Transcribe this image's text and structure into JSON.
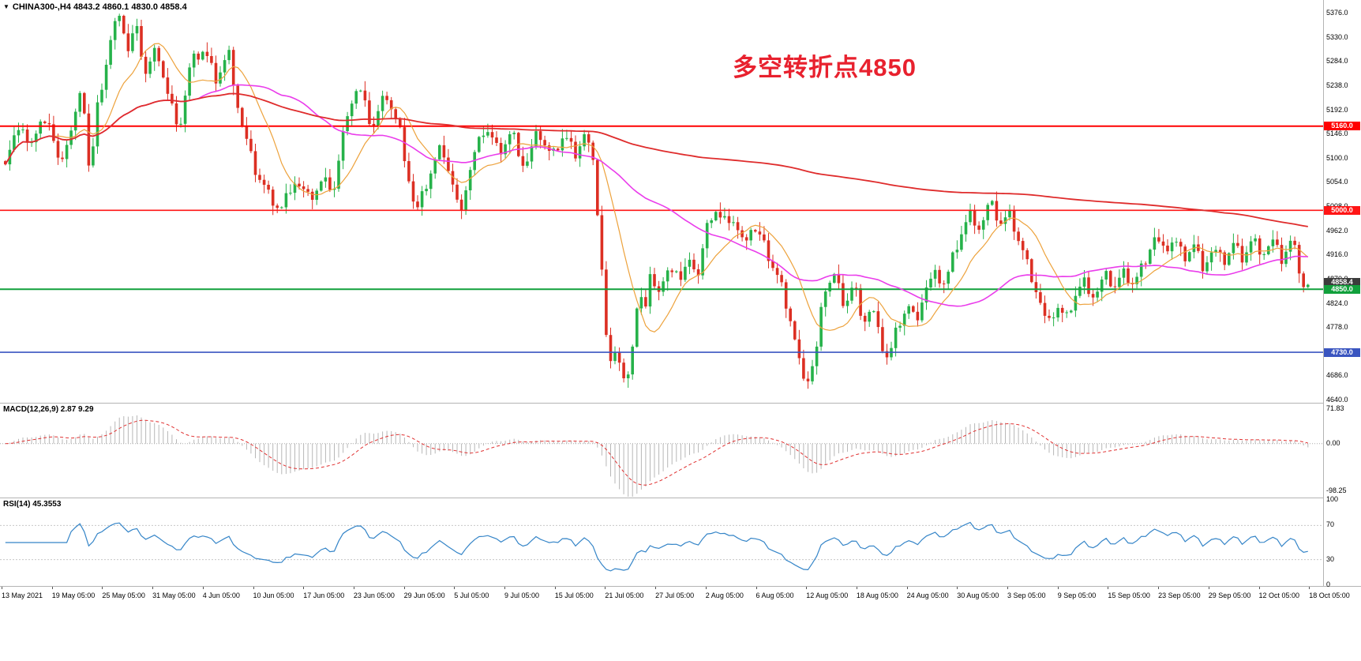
{
  "header": {
    "icon": "▼",
    "text": "CHINA300-,H4 4843.2 4860.1 4830.0 4858.4"
  },
  "annotation": {
    "text": "多空转折点4850",
    "color": "#e8212e"
  },
  "chart_data": {
    "type": "candlestick",
    "symbol": "CHINA300-",
    "timeframe": "H4",
    "ohlc_display": {
      "open": 4843.2,
      "high": 4860.1,
      "low": 4830.0,
      "close": 4858.4
    },
    "bar_count": 298,
    "price_pane": {
      "ylim": [
        4634,
        5400
      ],
      "axis_ticks": [
        "5376.0",
        "5330.0",
        "5284.0",
        "5238.0",
        "5192.0",
        "5146.0",
        "5100.0",
        "5054.0",
        "5008.0",
        "4962.0",
        "4916.0",
        "4870.0",
        "4824.0",
        "4778.0",
        "4686.0",
        "4640.0"
      ],
      "axis_tick_values": [
        5376,
        5330,
        5284,
        5238,
        5192,
        5146,
        5100,
        5054,
        5008,
        4962,
        4916,
        4870,
        4824,
        4778,
        4686,
        4640
      ],
      "up_color": "#26b24a",
      "down_color": "#dc2f23",
      "hlines": [
        {
          "value": 5160.0,
          "label": "5160.0",
          "color": "#ff0000",
          "width": 2
        },
        {
          "value": 5000.0,
          "label": "5000.0",
          "color": "#ff1515",
          "width": 1.6
        },
        {
          "value": 4850.0,
          "label": "4850.0",
          "color": "#11a03c",
          "width": 2
        },
        {
          "value": 4730.0,
          "label": "4730.0",
          "color": "#3a55c0",
          "width": 1.6
        }
      ],
      "current_price": {
        "value": 4858.4,
        "label": "4858.4",
        "color": "#3c3c3c"
      },
      "moving_averages": [
        {
          "name": "ma-fast",
          "period": 12,
          "color": "#eda23c",
          "width": 1.2
        },
        {
          "name": "ma-medium",
          "period": 45,
          "color": "#ea3deb",
          "width": 1.6
        },
        {
          "name": "ma-slow",
          "period": 260,
          "color": "#df2c2c",
          "width": 1.8
        }
      ],
      "price_path_anchors": [
        [
          0,
          5080
        ],
        [
          18,
          5150
        ],
        [
          40,
          5130
        ],
        [
          58,
          5185
        ],
        [
          72,
          5090
        ],
        [
          88,
          5150
        ],
        [
          103,
          5230
        ],
        [
          112,
          5060
        ],
        [
          122,
          5200
        ],
        [
          138,
          5320
        ],
        [
          150,
          5385
        ],
        [
          160,
          5300
        ],
        [
          170,
          5350
        ],
        [
          183,
          5260
        ],
        [
          197,
          5310
        ],
        [
          212,
          5210
        ],
        [
          226,
          5160
        ],
        [
          240,
          5280
        ],
        [
          256,
          5305
        ],
        [
          272,
          5250
        ],
        [
          288,
          5300
        ],
        [
          303,
          5170
        ],
        [
          320,
          5080
        ],
        [
          338,
          5030
        ],
        [
          354,
          5000
        ],
        [
          370,
          5060
        ],
        [
          390,
          5020
        ],
        [
          407,
          5055
        ],
        [
          422,
          5045
        ],
        [
          438,
          5190
        ],
        [
          452,
          5235
        ],
        [
          470,
          5155
        ],
        [
          487,
          5225
        ],
        [
          505,
          5150
        ],
        [
          525,
          4990
        ],
        [
          542,
          5065
        ],
        [
          558,
          5125
        ],
        [
          572,
          5045
        ],
        [
          580,
          4995
        ],
        [
          597,
          5095
        ],
        [
          613,
          5160
        ],
        [
          630,
          5110
        ],
        [
          647,
          5150
        ],
        [
          663,
          5080
        ],
        [
          680,
          5150
        ],
        [
          697,
          5100
        ],
        [
          712,
          5145
        ],
        [
          727,
          5110
        ],
        [
          740,
          5150
        ],
        [
          750,
          5080
        ],
        [
          758,
          4950
        ],
        [
          766,
          4760
        ],
        [
          772,
          4700
        ],
        [
          778,
          4745
        ],
        [
          785,
          4700
        ],
        [
          792,
          4655
        ],
        [
          800,
          4760
        ],
        [
          808,
          4855
        ],
        [
          815,
          4800
        ],
        [
          823,
          4880
        ],
        [
          832,
          4845
        ],
        [
          842,
          4870
        ],
        [
          852,
          4900
        ],
        [
          862,
          4860
        ],
        [
          872,
          4920
        ],
        [
          882,
          4870
        ],
        [
          893,
          4960
        ],
        [
          903,
          5005
        ],
        [
          913,
          4975
        ],
        [
          925,
          4990
        ],
        [
          938,
          4940
        ],
        [
          950,
          4970
        ],
        [
          962,
          4945
        ],
        [
          975,
          4900
        ],
        [
          988,
          4855
        ],
        [
          1000,
          4790
        ],
        [
          1012,
          4700
        ],
        [
          1022,
          4680
        ],
        [
          1032,
          4725
        ],
        [
          1042,
          4850
        ],
        [
          1055,
          4875
        ],
        [
          1068,
          4820
        ],
        [
          1080,
          4860
        ],
        [
          1092,
          4790
        ],
        [
          1103,
          4815
        ],
        [
          1113,
          4750
        ],
        [
          1124,
          4715
        ],
        [
          1135,
          4780
        ],
        [
          1148,
          4820
        ],
        [
          1158,
          4790
        ],
        [
          1170,
          4850
        ],
        [
          1183,
          4875
        ],
        [
          1196,
          4860
        ],
        [
          1205,
          4910
        ],
        [
          1215,
          4955
        ],
        [
          1228,
          4995
        ],
        [
          1240,
          4965
        ],
        [
          1252,
          5015
        ],
        [
          1265,
          4975
        ],
        [
          1278,
          4990
        ],
        [
          1292,
          4930
        ],
        [
          1304,
          4880
        ],
        [
          1315,
          4830
        ],
        [
          1325,
          4775
        ],
        [
          1337,
          4820
        ],
        [
          1348,
          4790
        ],
        [
          1360,
          4840
        ],
        [
          1372,
          4865
        ],
        [
          1385,
          4835
        ],
        [
          1398,
          4875
        ],
        [
          1410,
          4855
        ],
        [
          1422,
          4880
        ],
        [
          1435,
          4860
        ],
        [
          1448,
          4905
        ],
        [
          1460,
          4950
        ],
        [
          1472,
          4920
        ],
        [
          1485,
          4945
        ],
        [
          1498,
          4910
        ],
        [
          1510,
          4935
        ],
        [
          1522,
          4895
        ],
        [
          1535,
          4925
        ],
        [
          1548,
          4900
        ],
        [
          1560,
          4935
        ],
        [
          1572,
          4910
        ],
        [
          1585,
          4945
        ],
        [
          1598,
          4920
        ],
        [
          1610,
          4940
        ],
        [
          1622,
          4905
        ],
        [
          1632,
          4940
        ],
        [
          1640,
          4920
        ],
        [
          1648,
          4858
        ],
        [
          1658,
          4858
        ]
      ]
    },
    "macd_pane": {
      "display": "MACD(12,26,9) 2.87 9.29",
      "params": [
        12,
        26,
        9
      ],
      "value": 2.87,
      "signal": 9.29,
      "ylim": [
        -110,
        80
      ],
      "axis_ticks": [
        {
          "label": "71.83",
          "value": 71.83
        },
        {
          "label": "0.00",
          "value": 0
        },
        {
          "label": "-98.25",
          "value": -98.25
        }
      ],
      "histogram_color": "#b7b7b7",
      "signal_color": "#e03030"
    },
    "rsi_pane": {
      "display": "RSI(14) 45.3553",
      "period": 14,
      "value": 45.3553,
      "ylim": [
        0,
        100
      ],
      "axis_ticks": [
        {
          "label": "100",
          "value": 100
        },
        {
          "label": "70",
          "value": 70
        },
        {
          "label": "30",
          "value": 30
        },
        {
          "label": "0",
          "value": 0
        }
      ],
      "levels": [
        70,
        30
      ],
      "line_color": "#3585c8"
    },
    "time_axis": {
      "labels": [
        "13 May 2021",
        "19 May 05:00",
        "25 May 05:00",
        "31 May 05:00",
        "4 Jun 05:00",
        "10 Jun 05:00",
        "17 Jun 05:00",
        "23 Jun 05:00",
        "29 Jun 05:00",
        "5 Jul 05:00",
        "9 Jul 05:00",
        "15 Jul 05:00",
        "21 Jul 05:00",
        "27 Jul 05:00",
        "2 Aug 05:00",
        "6 Aug 05:00",
        "12 Aug 05:00",
        "18 Aug 05:00",
        "24 Aug 05:00",
        "30 Aug 05:00",
        "3 Sep 05:00",
        "9 Sep 05:00",
        "15 Sep 05:00",
        "23 Sep 05:00",
        "29 Sep 05:00",
        "12 Oct 05:00",
        "18 Oct 05:00"
      ]
    }
  }
}
